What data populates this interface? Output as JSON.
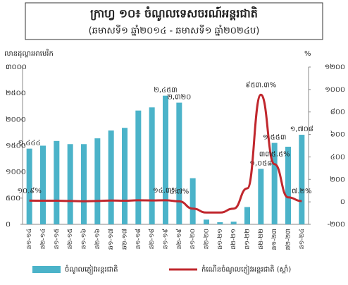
{
  "chart_data": {
    "type": "bar-line",
    "title": "ក្រាហ្វ ១០៖ ចំណូលទេសចរណ៍អន្តរជាតិ",
    "subtitle": "(ឆមាសទី១ ឆ្នាំ២០១៤ - ឆមាសទី១ ឆ្នាំ២០២៤ប)",
    "y_label": "លានដុល្លារអាមេរិក",
    "y2_label": "%",
    "categories": [
      "ឆ១-១៤",
      "ឆ២-១៤",
      "ឆ១-១៥",
      "ឆ២-១៥",
      "ឆ១-១៦",
      "ឆ២-១៦",
      "ឆ១-១៧",
      "ឆ២-១៧",
      "ឆ១-១៨",
      "ឆ២-១៨",
      "ឆ១-១៩",
      "ឆ២-១៩",
      "ឆ១-២០",
      "ឆ២-២០",
      "ឆ១-២១",
      "ឆ២-២១",
      "ឆ១-២២",
      "ឆ២-២២",
      "ឆ១-២៣",
      "ឆ២-២៣",
      "ឆ១-២៤"
    ],
    "series": [
      {
        "name": "ចំណូលភ្ញៀវអន្តរជាតិ",
        "color": "#4bb3c9",
        "kind": "bar",
        "values": [
          1444,
          1500,
          1590,
          1530,
          1530,
          1640,
          1790,
          1840,
          2170,
          2230,
          2453,
          2320,
          880,
          90,
          40,
          50,
          330,
          1058,
          1553,
          1480,
          1708
        ],
        "value_labels": [
          "១,៤៤៤",
          null,
          null,
          null,
          null,
          null,
          null,
          null,
          null,
          null,
          "២,៤៥៣",
          "២,៣២០",
          null,
          null,
          null,
          null,
          null,
          "១,០៥៨",
          "១,៥៥៣",
          null,
          "១,៧០៨"
        ]
      },
      {
        "name": "កំណើនចំណូលភ្ញៀវអន្តរជាតិ (ស្តាំ)",
        "color": "#c0272d",
        "kind": "line",
        "axis": "y2",
        "values": [
          10.9,
          10,
          10,
          8,
          5,
          8,
          12,
          10,
          14,
          13,
          14.3,
          4.7,
          -60,
          -95,
          -95,
          -60,
          120,
          953.3,
          335.5,
          40,
          7.2
        ],
        "value_labels": [
          "១០.៩%",
          null,
          null,
          null,
          null,
          null,
          null,
          null,
          null,
          null,
          "១៤.៣%",
          "៤.៧%",
          null,
          null,
          null,
          null,
          null,
          "៩៥៣.៣%",
          "៣៣៥.៥%",
          null,
          "៧.២%"
        ]
      }
    ],
    "ylim": [
      0,
      3000
    ],
    "yticks": [
      {
        "value": 0,
        "label": "០"
      },
      {
        "value": 500,
        "label": "៥០០"
      },
      {
        "value": 1000,
        "label": "១០០០"
      },
      {
        "value": 1500,
        "label": "១៥០០"
      },
      {
        "value": 2000,
        "label": "២០០០"
      },
      {
        "value": 2500,
        "label": "២៥០០"
      },
      {
        "value": 3000,
        "label": "៣០០០"
      }
    ],
    "y2lim": [
      -200,
      1200
    ],
    "y2ticks": [
      {
        "value": -200,
        "label": "-២០០"
      },
      {
        "value": 0,
        "label": "០"
      },
      {
        "value": 200,
        "label": "២០០"
      },
      {
        "value": 400,
        "label": "៤០០"
      },
      {
        "value": 600,
        "label": "៦០០"
      },
      {
        "value": 800,
        "label": "៨០០"
      },
      {
        "value": 1000,
        "label": "១០០០"
      },
      {
        "value": 1200,
        "label": "១២០០"
      }
    ],
    "legend": "bottom"
  }
}
